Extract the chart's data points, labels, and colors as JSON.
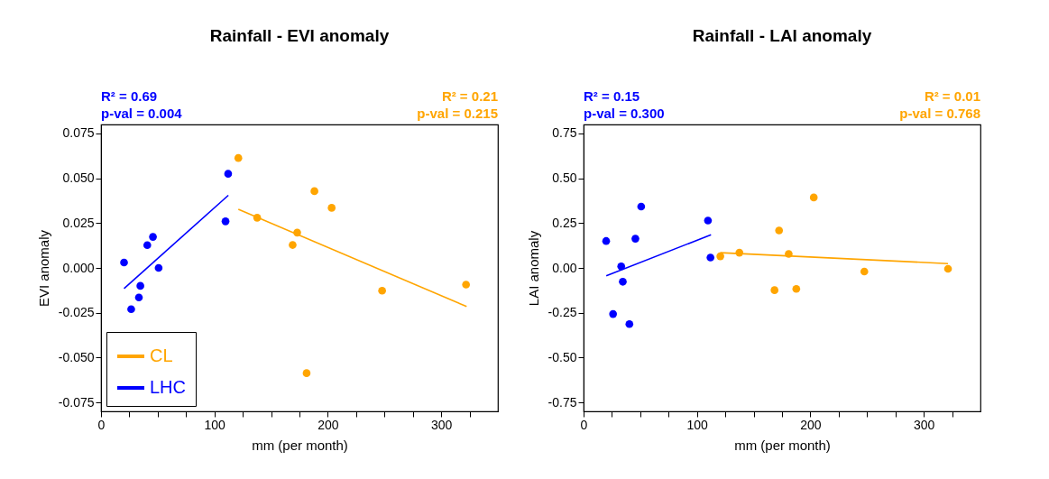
{
  "chart_data": [
    {
      "type": "scatter",
      "title": "Rainfall - EVI anomaly",
      "xlabel": "mm (per month)",
      "ylabel": "EVI anomaly",
      "xlim": [
        0,
        350
      ],
      "xticks": [
        0,
        {
          "value": 25,
          "label": null
        },
        {
          "value": 50,
          "label": null
        },
        {
          "value": 75,
          "label": null
        },
        100,
        {
          "value": 125,
          "label": null
        },
        {
          "value": 150,
          "label": null
        },
        {
          "value": 175,
          "label": null
        },
        200,
        {
          "value": 225,
          "label": null
        },
        {
          "value": 250,
          "label": null
        },
        {
          "value": 275,
          "label": null
        },
        300,
        {
          "value": 325,
          "label": null
        }
      ],
      "ylim": [
        -0.08,
        0.08
      ],
      "yticks": [
        {
          "value": -0.075,
          "label": "-0.075"
        },
        {
          "value": -0.05,
          "label": "-0.050"
        },
        {
          "value": -0.025,
          "label": "-0.025"
        },
        {
          "value": 0,
          "label": "0.000"
        },
        {
          "value": 0.025,
          "label": "0.025"
        },
        {
          "value": 0.05,
          "label": "0.050"
        },
        {
          "value": 0.075,
          "label": "0.075"
        }
      ],
      "legend": "bottom left",
      "annotations": [
        "R² = 0.69\np-val = 0.004",
        "R² = 0.21\np-val = 0.215"
      ],
      "series": [
        {
          "type": "scatter",
          "marker": "circle",
          "color": "#0000ff",
          "x": [
            20.3,
            26.6,
            33.4,
            34.7,
            40.8,
            45.8,
            50.8,
            109.8,
            112.1
          ],
          "values": [
            0.003,
            -0.023,
            -0.0165,
            -0.01,
            0.0127,
            0.0173,
            0,
            0.026,
            0.0525
          ]
        },
        {
          "type": "scatter",
          "marker": "circle",
          "color": "#ffa500",
          "x": [
            121.1,
            137.7,
            169,
            173,
            181.3,
            188.2,
            203.4,
            247.9,
            321.9
          ],
          "values": [
            0.0613,
            0.028,
            0.0128,
            0.0197,
            -0.0587,
            0.0428,
            0.0335,
            -0.0127,
            -0.0093
          ]
        },
        {
          "type": "line",
          "name": "CL",
          "color": "#ffa500",
          "x": [
            121.1,
            322.4
          ],
          "values": [
            0.0327,
            -0.0215
          ]
        },
        {
          "type": "line",
          "name": "LHC",
          "color": "#0000ff",
          "x": [
            20.3,
            112.3
          ],
          "values": [
            -0.0115,
            0.0405
          ]
        }
      ]
    },
    {
      "type": "scatter",
      "title": "Rainfall - LAI anomaly",
      "xlabel": "mm (per month)",
      "ylabel": "LAI anomaly",
      "xlim": [
        0,
        350
      ],
      "xticks": [
        0,
        {
          "value": 25,
          "label": null
        },
        {
          "value": 50,
          "label": null
        },
        {
          "value": 75,
          "label": null
        },
        100,
        {
          "value": 125,
          "label": null
        },
        {
          "value": 150,
          "label": null
        },
        {
          "value": 175,
          "label": null
        },
        200,
        {
          "value": 225,
          "label": null
        },
        {
          "value": 250,
          "label": null
        },
        {
          "value": 275,
          "label": null
        },
        300,
        {
          "value": 325,
          "label": null
        }
      ],
      "ylim": [
        -0.8,
        0.8
      ],
      "yticks": [
        {
          "value": -0.75,
          "label": "-0.75"
        },
        {
          "value": -0.5,
          "label": "-0.50"
        },
        {
          "value": -0.25,
          "label": "-0.25"
        },
        {
          "value": 0,
          "label": "0.00"
        },
        {
          "value": 0.25,
          "label": "0.25"
        },
        {
          "value": 0.5,
          "label": "0.50"
        },
        {
          "value": 0.75,
          "label": "0.75"
        }
      ],
      "annotations": [
        "R² = 0.15\np-val = 0.300",
        "R² = 0.01\np-val = 0.768"
      ],
      "series": [
        {
          "type": "scatter",
          "marker": "circle",
          "color": "#0000ff",
          "x": [
            19.9,
            26,
            33.2,
            34.6,
            40.4,
            45.7,
            50.8,
            109.7,
            111.9
          ],
          "values": [
            0.15,
            -0.257,
            0.009,
            -0.077,
            -0.313,
            0.163,
            0.342,
            0.264,
            0.058
          ]
        },
        {
          "type": "scatter",
          "marker": "circle",
          "color": "#ffa500",
          "x": [
            120.6,
            137.4,
            168.4,
            172.4,
            180.9,
            187.6,
            203,
            247.6,
            321.4
          ],
          "values": [
            0.065,
            0.085,
            -0.124,
            0.209,
            0.078,
            -0.117,
            0.393,
            -0.02,
            -0.005
          ]
        },
        {
          "type": "line",
          "color": "#ffa500",
          "x": [
            120.6,
            321.4
          ],
          "values": [
            0.085,
            0.024
          ]
        },
        {
          "type": "line",
          "color": "#0000ff",
          "x": [
            20,
            112.4
          ],
          "values": [
            -0.044,
            0.185
          ]
        }
      ]
    }
  ]
}
